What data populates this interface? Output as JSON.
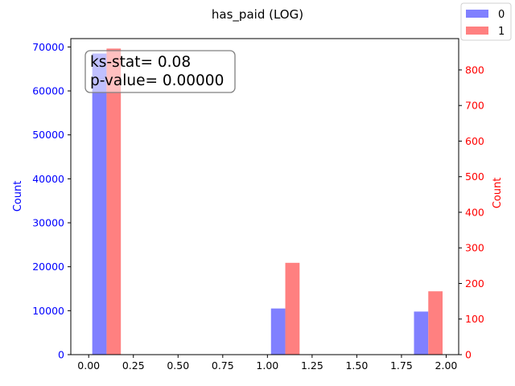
{
  "chart_data": {
    "type": "bar",
    "title": "has_paid (LOG)",
    "x_ticks": [
      "0.00",
      "0.25",
      "0.50",
      "0.75",
      "1.00",
      "1.25",
      "1.50",
      "1.75",
      "2.00"
    ],
    "xlim": [
      -0.1,
      2.07
    ],
    "left_axis": {
      "label": "Count",
      "color": "#0000ff",
      "ylim": [
        0,
        71900
      ],
      "ticks": [
        "0",
        "10000",
        "20000",
        "30000",
        "40000",
        "50000",
        "60000",
        "70000"
      ]
    },
    "right_axis": {
      "label": "Count",
      "color": "#ff0000",
      "ylim": [
        0,
        888
      ],
      "ticks": [
        "0",
        "100",
        "200",
        "300",
        "400",
        "500",
        "600",
        "700",
        "800"
      ]
    },
    "series": [
      {
        "name": "0",
        "axis": "left",
        "color": "#8080ff",
        "bars": [
          {
            "x0": 0.02,
            "x1": 0.1,
            "value": 68500
          },
          {
            "x0": 1.02,
            "x1": 1.1,
            "value": 10500
          },
          {
            "x0": 1.82,
            "x1": 1.9,
            "value": 9800
          }
        ]
      },
      {
        "name": "1",
        "axis": "right",
        "color": "#ff8080",
        "bars": [
          {
            "x0": 0.1,
            "x1": 0.18,
            "value": 860
          },
          {
            "x0": 1.1,
            "x1": 1.18,
            "value": 258
          },
          {
            "x0": 1.9,
            "x1": 1.98,
            "value": 178
          }
        ]
      }
    ],
    "annotation": [
      "ks-stat= 0.08",
      "p-value= 0.00000"
    ],
    "legend": {
      "placement": "top-right",
      "entries": [
        "0",
        "1"
      ]
    }
  }
}
